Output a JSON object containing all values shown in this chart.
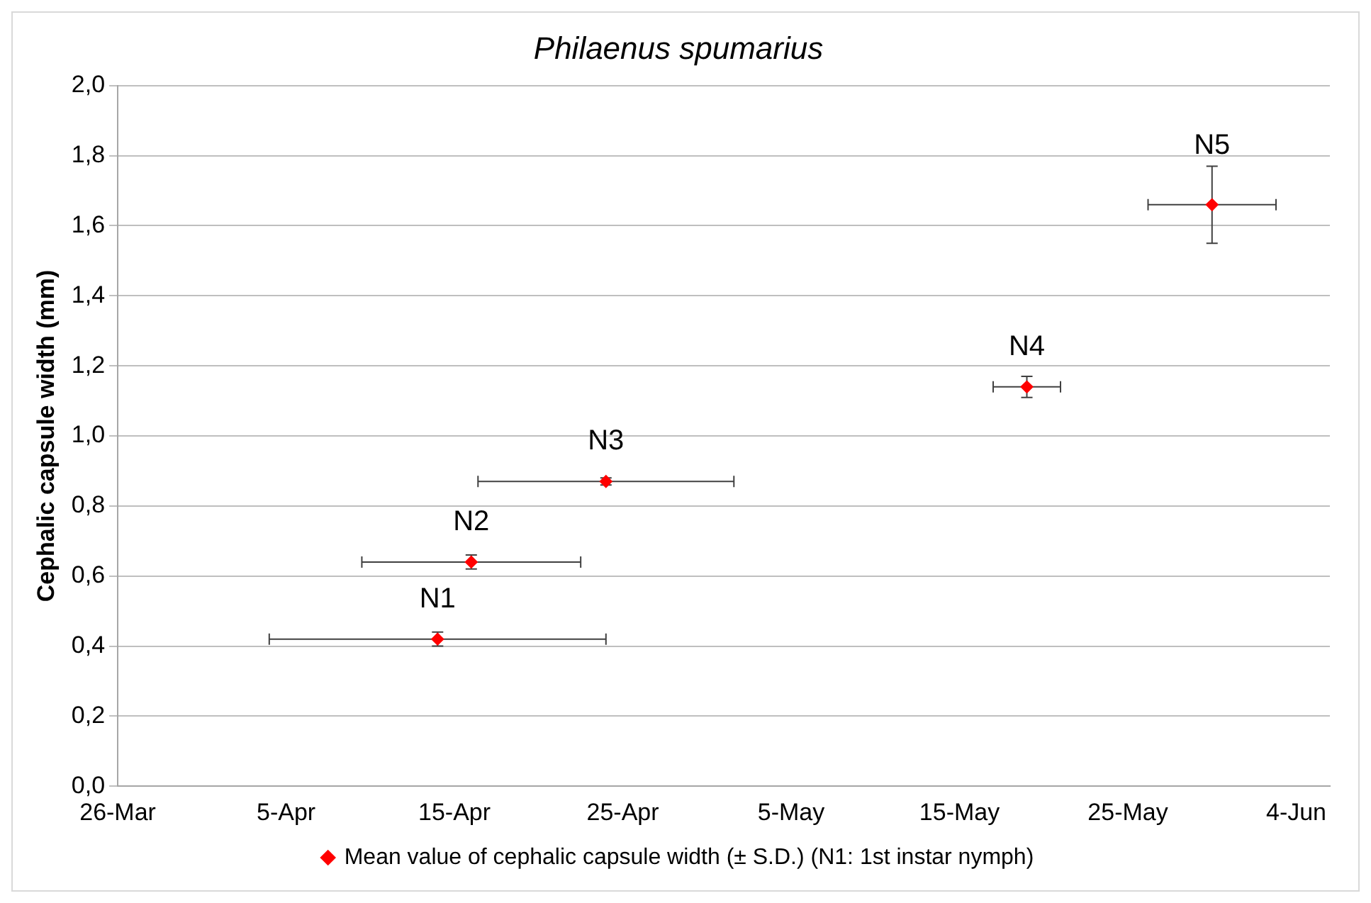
{
  "chart_data": {
    "type": "scatter",
    "title": "Philaenus spumarius",
    "ylabel": "Cephalic capsule width (mm)",
    "series": [
      {
        "name": "Mean value of cephalic capsule width (± S.D.) (N1: 1st instar nymph)",
        "color": "#ff0000",
        "x": [
          "--04-14",
          "--04-16",
          "--04-24",
          "--05-19",
          "--05-30"
        ],
        "values": [
          0.42,
          0.64,
          0.87,
          1.14,
          1.66
        ],
        "errors": [
          0.02,
          0.02,
          0.01,
          0.03,
          0.11
        ],
        "xerrors": [
          10,
          6.5,
          7.6,
          2,
          3.8
        ]
      }
    ],
    "annotations": [
      {
        "text": "N1",
        "x": "--04-14",
        "y": 0.42
      },
      {
        "text": "N2",
        "x": "--04-16",
        "y": 0.64
      },
      {
        "text": "N3",
        "x": "--04-24",
        "y": 0.87
      },
      {
        "text": "N4",
        "x": "--05-19",
        "y": 1.14
      },
      {
        "text": "N5",
        "x": "--05-30",
        "y": 1.66
      }
    ],
    "xlim": [
      "--03-26",
      "--06-06"
    ],
    "xticks": [
      {
        "value": "--03-26",
        "label": "26-Mar"
      },
      {
        "value": "--04-05",
        "label": "5-Apr"
      },
      {
        "value": "--04-15",
        "label": "15-Apr"
      },
      {
        "value": "--04-25",
        "label": "25-Apr"
      },
      {
        "value": "--05-05",
        "label": "5-May"
      },
      {
        "value": "--05-15",
        "label": "15-May"
      },
      {
        "value": "--05-25",
        "label": "25-May"
      },
      {
        "value": "--06-04",
        "label": "4-Jun"
      }
    ],
    "ylim": [
      0,
      2
    ],
    "yticks": [
      {
        "value": 0,
        "label": "0,0"
      },
      {
        "value": 0.2,
        "label": "0,2"
      },
      {
        "value": 0.4,
        "label": "0,4"
      },
      {
        "value": 0.6,
        "label": "0,6"
      },
      {
        "value": 0.8,
        "label": "0,8"
      },
      {
        "value": 1,
        "label": "1,0"
      },
      {
        "value": 1.2,
        "label": "1,2"
      },
      {
        "value": 1.4,
        "label": "1,4"
      },
      {
        "value": 1.6,
        "label": "1,6"
      },
      {
        "value": 1.8,
        "label": "1,8"
      },
      {
        "value": 2,
        "label": "2,0"
      }
    ],
    "grid": "y",
    "legend": "bottom",
    "marker": "diamond"
  }
}
